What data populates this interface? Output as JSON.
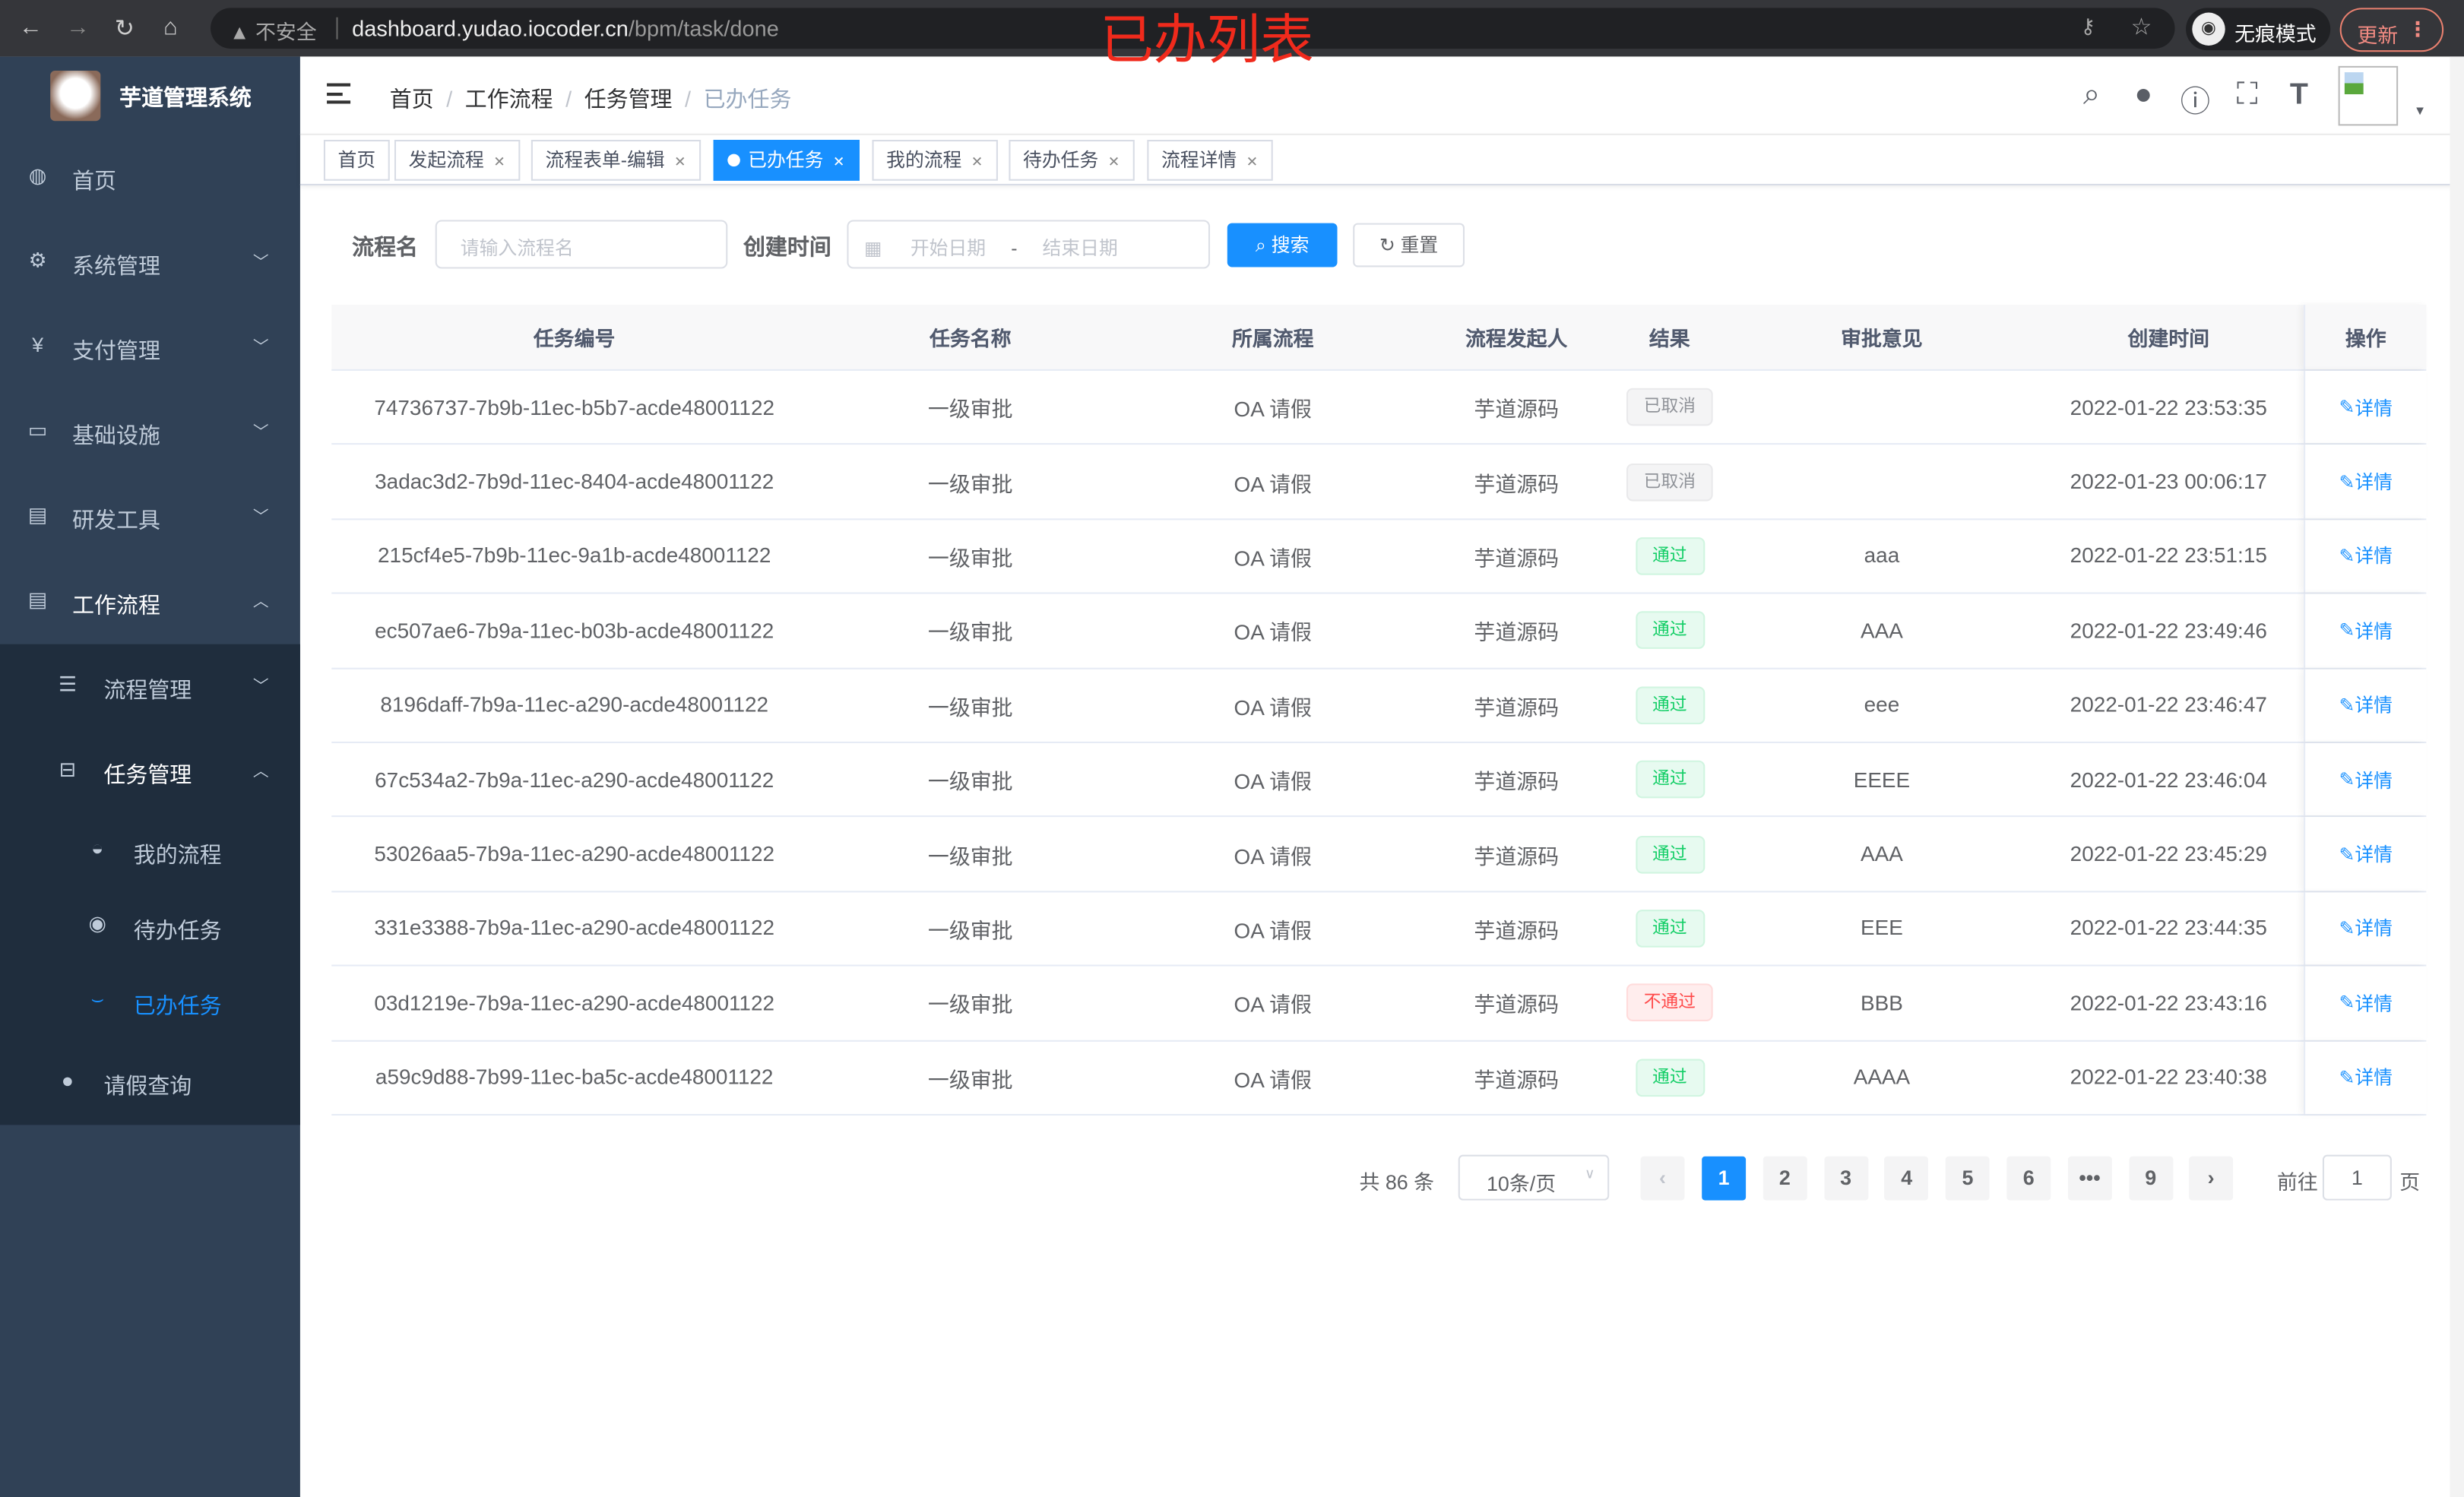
{
  "browser": {
    "back_icon": "arrow-left",
    "forward_icon": "arrow-right",
    "reload_icon": "reload",
    "home_icon": "home",
    "security_label": "不安全",
    "url_host": "dashboard.yudao.iocoder.cn",
    "url_path": "/bpm/task/done",
    "incognito_label": "无痕模式",
    "update_label": "更新"
  },
  "annotation": "已办列表",
  "sidebar": {
    "app_title": "芋道管理系统",
    "items": [
      {
        "label": "首页",
        "icon": "dashboard-icon"
      },
      {
        "label": "系统管理",
        "icon": "gear-icon"
      },
      {
        "label": "支付管理",
        "icon": "yen-icon"
      },
      {
        "label": "基础设施",
        "icon": "monitor-icon"
      },
      {
        "label": "研发工具",
        "icon": "toolbox-icon"
      },
      {
        "label": "工作流程",
        "icon": "toolbox-icon"
      }
    ],
    "workflow_children": [
      {
        "label": "流程管理"
      },
      {
        "label": "任务管理"
      }
    ],
    "task_children": [
      {
        "label": "我的流程"
      },
      {
        "label": "待办任务"
      },
      {
        "label": "已办任务"
      }
    ],
    "leave": {
      "label": "请假查询"
    }
  },
  "breadcrumb": [
    "首页",
    "工作流程",
    "任务管理",
    "已办任务"
  ],
  "tags": [
    {
      "label": "首页"
    },
    {
      "label": "发起流程"
    },
    {
      "label": "流程表单-编辑"
    },
    {
      "label": "已办任务",
      "active": true
    },
    {
      "label": "我的流程"
    },
    {
      "label": "待办任务"
    },
    {
      "label": "流程详情"
    }
  ],
  "search": {
    "name_label": "流程名",
    "name_placeholder": "请输入流程名",
    "time_label": "创建时间",
    "start_placeholder": "开始日期",
    "range_sep": "-",
    "end_placeholder": "结束日期",
    "search_button": "搜索",
    "reset_button": "重置"
  },
  "table": {
    "columns": [
      "任务编号",
      "任务名称",
      "所属流程",
      "流程发起人",
      "结果",
      "审批意见",
      "创建时间",
      "操作"
    ],
    "rows": [
      {
        "id": "74736737-7b9b-11ec-b5b7-acde48001122",
        "name": "一级审批",
        "process": "OA 请假",
        "starter": "芋道源码",
        "result": "已取消",
        "result_type": "info",
        "comment": "",
        "time": "2022-01-22 23:53:35",
        "action": "详情"
      },
      {
        "id": "3adac3d2-7b9d-11ec-8404-acde48001122",
        "name": "一级审批",
        "process": "OA 请假",
        "starter": "芋道源码",
        "result": "已取消",
        "result_type": "info",
        "comment": "",
        "time": "2022-01-23 00:06:17",
        "action": "详情"
      },
      {
        "id": "215cf4e5-7b9b-11ec-9a1b-acde48001122",
        "name": "一级审批",
        "process": "OA 请假",
        "starter": "芋道源码",
        "result": "通过",
        "result_type": "success",
        "comment": "aaa",
        "time": "2022-01-22 23:51:15",
        "action": "详情"
      },
      {
        "id": "ec507ae6-7b9a-11ec-b03b-acde48001122",
        "name": "一级审批",
        "process": "OA 请假",
        "starter": "芋道源码",
        "result": "通过",
        "result_type": "success",
        "comment": "AAA",
        "time": "2022-01-22 23:49:46",
        "action": "详情"
      },
      {
        "id": "8196daff-7b9a-11ec-a290-acde48001122",
        "name": "一级审批",
        "process": "OA 请假",
        "starter": "芋道源码",
        "result": "通过",
        "result_type": "success",
        "comment": "eee",
        "time": "2022-01-22 23:46:47",
        "action": "详情"
      },
      {
        "id": "67c534a2-7b9a-11ec-a290-acde48001122",
        "name": "一级审批",
        "process": "OA 请假",
        "starter": "芋道源码",
        "result": "通过",
        "result_type": "success",
        "comment": "EEEE",
        "time": "2022-01-22 23:46:04",
        "action": "详情"
      },
      {
        "id": "53026aa5-7b9a-11ec-a290-acde48001122",
        "name": "一级审批",
        "process": "OA 请假",
        "starter": "芋道源码",
        "result": "通过",
        "result_type": "success",
        "comment": "AAA",
        "time": "2022-01-22 23:45:29",
        "action": "详情"
      },
      {
        "id": "331e3388-7b9a-11ec-a290-acde48001122",
        "name": "一级审批",
        "process": "OA 请假",
        "starter": "芋道源码",
        "result": "通过",
        "result_type": "success",
        "comment": "EEE",
        "time": "2022-01-22 23:44:35",
        "action": "详情"
      },
      {
        "id": "03d1219e-7b9a-11ec-a290-acde48001122",
        "name": "一级审批",
        "process": "OA 请假",
        "starter": "芋道源码",
        "result": "不通过",
        "result_type": "danger",
        "comment": "BBB",
        "time": "2022-01-22 23:43:16",
        "action": "详情"
      },
      {
        "id": "a59c9d88-7b99-11ec-ba5c-acde48001122",
        "name": "一级审批",
        "process": "OA 请假",
        "starter": "芋道源码",
        "result": "通过",
        "result_type": "success",
        "comment": "AAAA",
        "time": "2022-01-22 23:40:38",
        "action": "详情"
      }
    ]
  },
  "pagination": {
    "total_text": "共 86 条",
    "page_size": "10条/页",
    "pages": [
      "1",
      "2",
      "3",
      "4",
      "5",
      "6",
      "•••",
      "9"
    ],
    "current": "1",
    "goto_label": "前往",
    "goto_value": "1",
    "page_suffix": "页"
  },
  "colors": {
    "primary": "#1890ff",
    "sidebar": "#304156",
    "submenu": "#1f2d3d",
    "success": "#13ce66",
    "danger": "#ff4949",
    "info": "#909399"
  }
}
